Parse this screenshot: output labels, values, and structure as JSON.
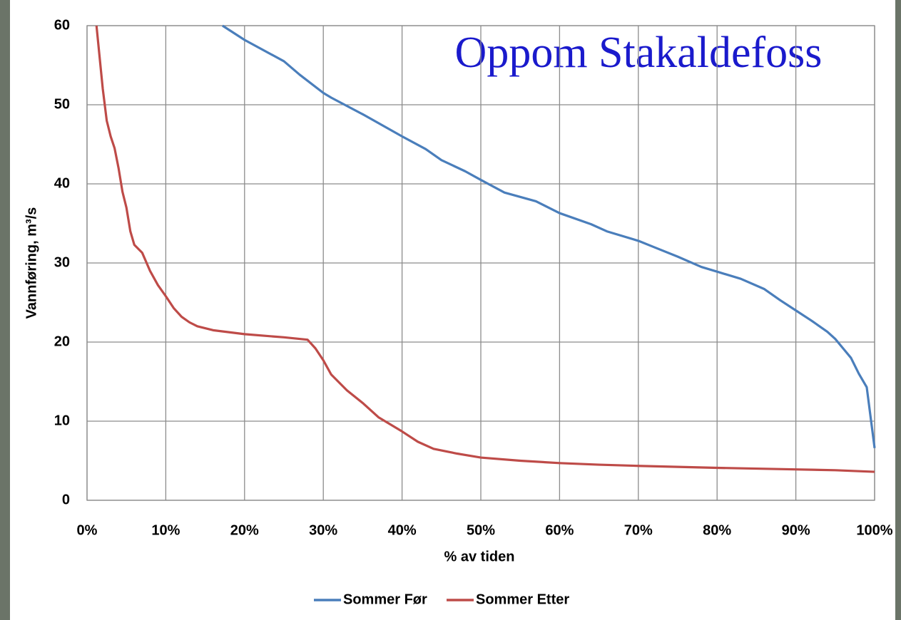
{
  "chart_data": {
    "type": "line",
    "title": "Oppom Stakaldefoss",
    "xlabel": "% av tiden",
    "ylabel": "Vannføring, m³/s",
    "xlim": [
      0,
      100
    ],
    "ylim": [
      0,
      60
    ],
    "xticks": [
      {
        "value": 0,
        "label": "0%"
      },
      {
        "value": 10,
        "label": "10%"
      },
      {
        "value": 20,
        "label": "20%"
      },
      {
        "value": 30,
        "label": "30%"
      },
      {
        "value": 40,
        "label": "40%"
      },
      {
        "value": 50,
        "label": "50%"
      },
      {
        "value": 60,
        "label": "60%"
      },
      {
        "value": 70,
        "label": "70%"
      },
      {
        "value": 80,
        "label": "80%"
      },
      {
        "value": 90,
        "label": "90%"
      },
      {
        "value": 100,
        "label": "100%"
      }
    ],
    "yticks": [
      0,
      10,
      20,
      30,
      40,
      50,
      60
    ],
    "grid": true,
    "legend": "bottom",
    "series": [
      {
        "name": "Sommer Før",
        "color": "#4a7ebb",
        "x": [
          17.2,
          20,
          25,
          27,
          30,
          31,
          35,
          40,
          43,
          45,
          48,
          50,
          53,
          57,
          60,
          64,
          66,
          70,
          72,
          75,
          78,
          80,
          83,
          86,
          88,
          90,
          92,
          94,
          95,
          96,
          97,
          98,
          99,
          100
        ],
        "values": [
          60,
          58.2,
          55.5,
          53.8,
          51.5,
          50.9,
          48.8,
          46,
          44.4,
          43,
          41.6,
          40.5,
          38.9,
          37.8,
          36.3,
          34.9,
          34,
          32.8,
          32,
          30.8,
          29.5,
          28.9,
          28,
          26.7,
          25.3,
          24,
          22.7,
          21.3,
          20.4,
          19.2,
          18,
          16,
          14.3,
          6.6
        ]
      },
      {
        "name": "Sommer Etter",
        "color": "#be4b48",
        "x": [
          1.2,
          1.5,
          2,
          2.5,
          3,
          3.5,
          4,
          4.5,
          5,
          5.5,
          6,
          7,
          8,
          9,
          10,
          11,
          12,
          13,
          14,
          16,
          20,
          25,
          28,
          29,
          30,
          31,
          33,
          35,
          37,
          40,
          42,
          44,
          47,
          50,
          55,
          60,
          65,
          70,
          80,
          90,
          95,
          100
        ],
        "values": [
          60,
          57,
          52,
          48,
          46,
          44.5,
          42,
          39,
          37,
          34,
          32.3,
          31.3,
          29,
          27.2,
          25.8,
          24.3,
          23.2,
          22.5,
          22,
          21.5,
          21,
          20.6,
          20.3,
          19.2,
          17.7,
          15.9,
          13.9,
          12.3,
          10.5,
          8.7,
          7.4,
          6.5,
          5.9,
          5.4,
          5,
          4.7,
          4.5,
          4.35,
          4.1,
          3.9,
          3.8,
          3.6
        ]
      }
    ]
  }
}
